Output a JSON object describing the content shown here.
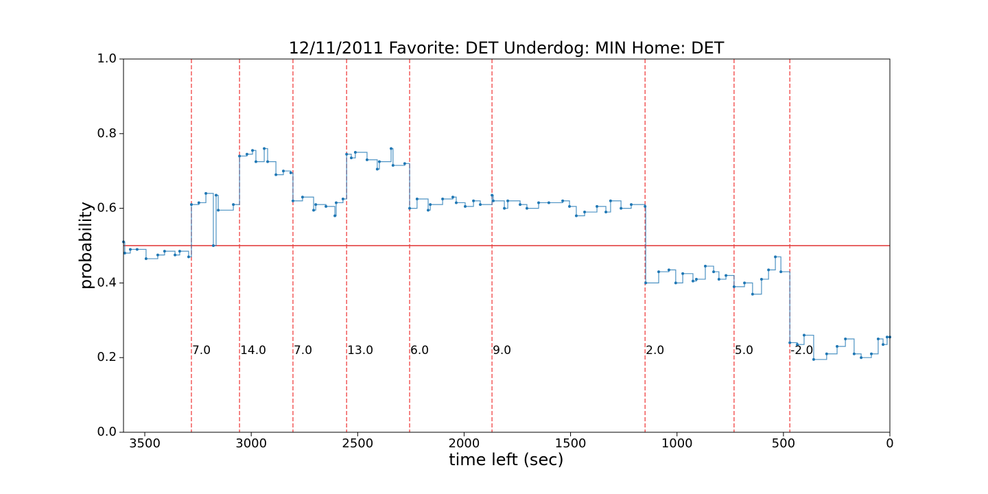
{
  "chart_data": {
    "type": "line",
    "title": "12/11/2011 Favorite: DET Underdog: MIN Home: DET",
    "x_label": "time left (sec)",
    "y_label": "probability",
    "xlim": [
      3600,
      0
    ],
    "ylim": [
      0,
      1
    ],
    "xticks": [
      3500,
      3000,
      2500,
      2000,
      1500,
      1000,
      500,
      0
    ],
    "yticks": [
      {
        "value": 0,
        "label": "0.0"
      },
      0.2,
      0.4,
      0.6,
      0.8,
      {
        "value": 1,
        "label": "1.0"
      }
    ],
    "hline": {
      "value": 0.5,
      "color": "#e03030"
    },
    "score_changes": {
      "color": "#f04040",
      "label_y": 0.2,
      "x": [
        3281,
        3055,
        2804,
        2552,
        2256,
        1869,
        1150,
        732,
        470
      ],
      "labels": [
        "7.0",
        "14.0",
        "7.0",
        "13.0",
        "6.0",
        "9.0",
        "2.0",
        "5.0",
        "-2.0"
      ]
    },
    "series": [
      {
        "color": "#1f77b4",
        "x": [
          3600,
          3594,
          3568,
          3536,
          3494,
          3439,
          3407,
          3358,
          3336,
          3294,
          3281,
          3246,
          3213,
          3178,
          3165,
          3155,
          3084,
          3055,
          3020,
          2994,
          2978,
          2939,
          2923,
          2884,
          2849,
          2814,
          2804,
          2759,
          2707,
          2697,
          2649,
          2607,
          2601,
          2569,
          2552,
          2530,
          2511,
          2456,
          2408,
          2398,
          2343,
          2334,
          2279,
          2256,
          2221,
          2169,
          2159,
          2101,
          2053,
          2037,
          1995,
          1956,
          1924,
          1869,
          1863,
          1811,
          1795,
          1737,
          1705,
          1650,
          1602,
          1537,
          1505,
          1473,
          1434,
          1376,
          1334,
          1312,
          1263,
          1215,
          1150,
          1147,
          1086,
          1038,
          1006,
          973,
          925,
          909,
          867,
          828,
          803,
          770,
          732,
          683,
          645,
          603,
          570,
          538,
          512,
          470,
          435,
          403,
          358,
          297,
          248,
          209,
          168,
          135,
          87,
          55,
          32,
          13,
          0
        ],
        "values": [
          0.51,
          0.48,
          0.49,
          0.49,
          0.465,
          0.475,
          0.485,
          0.475,
          0.485,
          0.47,
          0.61,
          0.615,
          0.64,
          0.5,
          0.635,
          0.595,
          0.61,
          0.74,
          0.745,
          0.755,
          0.725,
          0.76,
          0.725,
          0.69,
          0.7,
          0.695,
          0.62,
          0.63,
          0.595,
          0.61,
          0.605,
          0.58,
          0.615,
          0.625,
          0.745,
          0.735,
          0.75,
          0.73,
          0.705,
          0.725,
          0.76,
          0.715,
          0.72,
          0.6,
          0.625,
          0.595,
          0.61,
          0.625,
          0.63,
          0.615,
          0.605,
          0.62,
          0.61,
          0.635,
          0.62,
          0.6,
          0.62,
          0.61,
          0.6,
          0.615,
          0.615,
          0.62,
          0.605,
          0.58,
          0.59,
          0.605,
          0.59,
          0.62,
          0.6,
          0.61,
          0.605,
          0.4,
          0.43,
          0.435,
          0.4,
          0.425,
          0.405,
          0.41,
          0.445,
          0.43,
          0.41,
          0.42,
          0.39,
          0.4,
          0.37,
          0.41,
          0.435,
          0.47,
          0.43,
          0.24,
          0.235,
          0.26,
          0.195,
          0.21,
          0.23,
          0.25,
          0.21,
          0.2,
          0.21,
          0.25,
          0.235,
          0.255,
          0.255
        ]
      }
    ]
  }
}
